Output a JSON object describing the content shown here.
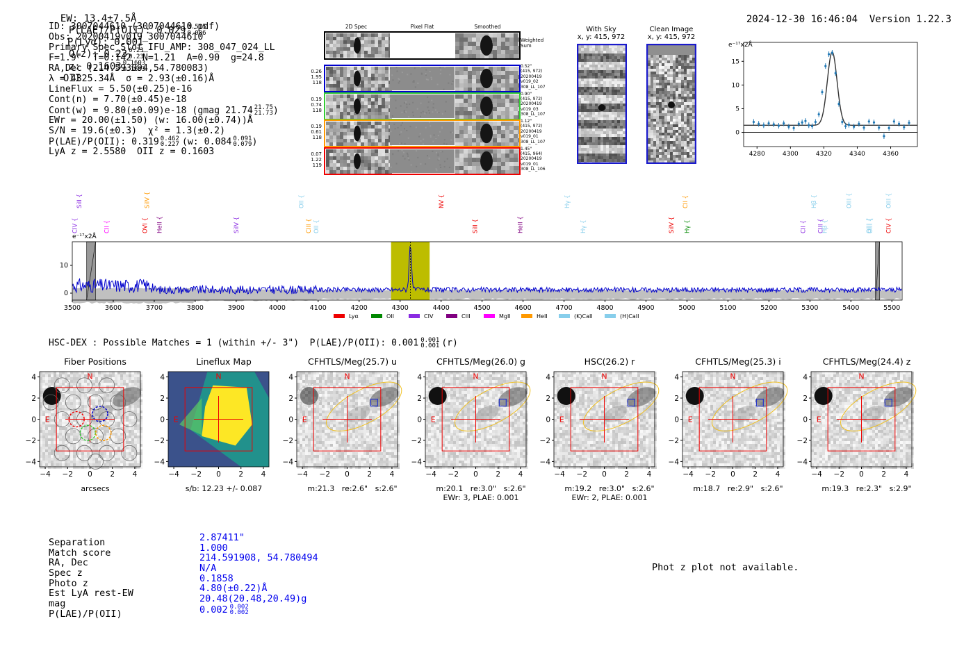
{
  "header": {
    "ew": "EW: 13.4±7.5Å",
    "plae_label": "P(LAE)/P(OII): 0.029",
    "plae_hi": "0.515",
    "plae_lo": "0.006",
    "plya": "P(Lyα): 0.001",
    "qz_label": "Q(z): 0.23",
    "qz_hi": "0.23",
    "qz_lo": "0.23",
    "z_label": "z: 0.1603",
    "z_hi": "0.1603",
    "z_lo": "0.1603",
    "z_line": "OII",
    "datetime": "2024-12-30 16:46:04",
    "version": "Version 1.22.3"
  },
  "info": {
    "id": "ID: 3007044610 (3007044610.pdf)",
    "obs": "Obs: 20200419v019_3007044610",
    "primary": "Primary Spec_Slot_IFU_AMP: 308_047_024_LL",
    "params": "F=1.9\"  T=0.142  N=1.21  A=0.90  g=24.8",
    "radec": "RA,Dec (214.593094,54.780083)",
    "lambda": "λ = 4325.34Å  σ = 2.93(±0.16)Å",
    "lineflux": "LineFlux = 5.50(±0.25)e-16",
    "contn": "Cont(n) = 7.70(±0.45)e-18",
    "contw": "Cont(w) = 9.80(±0.09)e-18 (gmag 21.74",
    "contw_hi": "21.75",
    "contw_lo": "21.73",
    "contw_close": ")",
    "ewr": "EWr = 20.00(±1.50) (w: 16.00(±0.74))Å",
    "sn": "S/N = 19.6(±0.3)  χ² = 1.3(±0.2)",
    "plae": "P(LAE)/P(OII): 0.319",
    "plae_hi": "0.462",
    "plae_lo": "0.227",
    "plae_w": "(w: 0.084",
    "plae_w_hi": "0.091",
    "plae_w_lo": "0.079",
    "plae_w_close": ")",
    "lya": "LyA z = 2.5580  OII z = 0.1603"
  },
  "cutouts2d": {
    "col_2d": "2D Spec",
    "col_flat": "Pixel Flat",
    "col_smooth": "Smoothed",
    "weighted": "Weighted\nSum",
    "rows": [
      {
        "left": "0.26\n1.95\n118",
        "right": "0.52\"\n(415, 972)\n20200419\nv019_02\n308_LL_107",
        "color": "#0000cc"
      },
      {
        "left": "0.19\n0.74\n118",
        "right": "0.90\"\n(415, 972)\n20200419\nv019_03\n308_LL_107",
        "color": "#33cc33"
      },
      {
        "left": "0.19\n0.61\n118",
        "right": "1.12\"\n(415, 972)\n20200419\nv019_01\n308_LL_107",
        "color": "#ff9900"
      },
      {
        "left": "0.07\n1.22\n119",
        "right": "1.45\"\n(415, 964)\n20200419\nv019_01\n308_LL_106",
        "color": "#ee0000"
      }
    ]
  },
  "sky": {
    "with_sky": "With Sky",
    "clean": "Clean Image",
    "coords1": "x, y: 415, 972",
    "coords2": "x, y: 415, 972"
  },
  "zoom_plot": {
    "unit": "e⁻¹⁷x2Å",
    "chart_data": {
      "type": "line",
      "xlim": [
        4272,
        4376
      ],
      "ylim": [
        -3,
        19
      ],
      "xticks": [
        "4280",
        "4300",
        "4320",
        "4340",
        "4360"
      ],
      "yticks": [
        "0",
        "5",
        "10",
        "15"
      ],
      "points_x": [
        4278,
        4281,
        4284,
        4287,
        4290,
        4293,
        4296,
        4299,
        4302,
        4305,
        4307,
        4309,
        4311,
        4313,
        4315,
        4317,
        4319,
        4321,
        4323,
        4325,
        4327,
        4329,
        4331,
        4333,
        4335,
        4338,
        4341,
        4344,
        4347,
        4350,
        4353,
        4356,
        4359,
        4362,
        4365,
        4368,
        4371
      ],
      "points_y": [
        2.2,
        1.8,
        1.5,
        1.9,
        1.7,
        1.4,
        1.9,
        1.2,
        0.9,
        1.8,
        2.1,
        2.4,
        1.5,
        1.3,
        2.2,
        3.8,
        8.5,
        14.0,
        16.5,
        16.8,
        12.5,
        6.0,
        2.2,
        1.3,
        1.6,
        1.2,
        1.8,
        1.0,
        2.3,
        2.1,
        1.0,
        -0.8,
        0.9,
        2.3,
        1.8,
        1.1,
        2.0
      ]
    }
  },
  "main_spec": {
    "unit": "e⁻¹⁷x2Å",
    "chart_data": {
      "type": "line",
      "xlim": [
        3500,
        5525
      ],
      "ylim": [
        -2.5,
        18.5
      ],
      "xticks": [
        "3500",
        "3600",
        "3700",
        "3800",
        "3900",
        "4000",
        "4100",
        "4200",
        "4300",
        "4400",
        "4500",
        "4600",
        "4700",
        "4800",
        "4900",
        "5000",
        "5100",
        "5200",
        "5300",
        "5400",
        "5500"
      ],
      "yticks": [
        "0",
        "10"
      ],
      "highlight_center": 4325,
      "highlight_range": [
        4278,
        4372
      ],
      "line_labels": [
        {
          "name": "CIV",
          "x": 3511,
          "color": "#8a2be2"
        },
        {
          "name": "SiII",
          "x": 3522,
          "color": "#8a2be2"
        },
        {
          "name": "CII",
          "x": 3589,
          "color": "#ff00ff"
        },
        {
          "name": "OVI",
          "x": 3682,
          "color": "#ee0000"
        },
        {
          "name": "SiIV",
          "x": 3687,
          "color": "#ff9900"
        },
        {
          "name": "HeII",
          "x": 3718,
          "color": "#800080"
        },
        {
          "name": "SiIV",
          "x": 3905,
          "color": "#8a2be2"
        },
        {
          "name": "OII",
          "x": 4064,
          "color": "#87ceeb"
        },
        {
          "name": "CIII",
          "x": 4082,
          "color": "#ff9900"
        },
        {
          "name": "OII",
          "x": 4100,
          "color": "#87ceeb"
        },
        {
          "name": "NV",
          "x": 4406,
          "color": "#ee0000"
        },
        {
          "name": "SiII",
          "x": 4488,
          "color": "#ee0000"
        },
        {
          "name": "HeII",
          "x": 4598,
          "color": "#800080"
        },
        {
          "name": "Hγ",
          "x": 4713,
          "color": "#87ceeb"
        },
        {
          "name": "Hγ",
          "x": 4752,
          "color": "#87ceeb"
        },
        {
          "name": "SiIV",
          "x": 4967,
          "color": "#ee0000"
        },
        {
          "name": "CII",
          "x": 5001,
          "color": "#ff9900"
        },
        {
          "name": "Hγ",
          "x": 5005,
          "color": "#008800"
        },
        {
          "name": "CII",
          "x": 5288,
          "color": "#8a2be2"
        },
        {
          "name": "Hβ",
          "x": 5315,
          "color": "#87ceeb"
        },
        {
          "name": "CIII",
          "x": 5331,
          "color": "#8a2be2"
        },
        {
          "name": "Hβ",
          "x": 5341,
          "color": "#87ceeb"
        },
        {
          "name": "OIII",
          "x": 5400,
          "color": "#87ceeb"
        },
        {
          "name": "OIII",
          "x": 5449,
          "color": "#87ceeb"
        },
        {
          "name": "OIII",
          "x": 5452,
          "color": "#87ceeb"
        },
        {
          "name": "OIII",
          "x": 5497,
          "color": "#87ceeb"
        },
        {
          "name": "CIV",
          "x": 5497,
          "color": "#ee0000"
        }
      ],
      "legend": [
        {
          "name": "Lyα",
          "color": "#ee0000"
        },
        {
          "name": "OII",
          "color": "#008800"
        },
        {
          "name": "CIV",
          "color": "#8a2be2"
        },
        {
          "name": "CIII",
          "color": "#800080"
        },
        {
          "name": "MgII",
          "color": "#ff00ff"
        },
        {
          "name": "HeII",
          "color": "#ff9900"
        },
        {
          "name": "(K)CaII",
          "color": "#87ceeb"
        },
        {
          "name": "(H)CaII",
          "color": "#87ceeb"
        }
      ]
    }
  },
  "hsc": {
    "title": "HSC-DEX : Possible Matches = 1 (within +/- 3\")  P(LAE)/P(OII): 0.001",
    "hi": "0.001",
    "lo": "0.001",
    "band": "(r)",
    "panels": [
      {
        "title": "Fiber Positions",
        "cap1": "arcsecs",
        "cap2": ""
      },
      {
        "title": "Lineflux Map",
        "cap1": "s/b: 12.23 +/- 0.087",
        "cap2": ""
      },
      {
        "title": "CFHTLS/Meg(25.7) u",
        "cap1": "m:21.3   re:2.6\"   s:2.6\"",
        "cap2": ""
      },
      {
        "title": "CFHTLS/Meg(26.0) g",
        "cap1": "m:20.1   re:3.0\"   s:2.6\"",
        "cap2": "EWr: 3, PLAE: 0.001"
      },
      {
        "title": "HSC(26.2) r",
        "cap1": "m:19.2   re:3.0\"   s:2.6\"",
        "cap2": "EWr: 2, PLAE: 0.001"
      },
      {
        "title": "CFHTLS/Meg(25.3) i",
        "cap1": "m:18.7   re:2.9\"   s:2.6\"",
        "cap2": ""
      },
      {
        "title": "CFHTLS/Meg(24.4) z",
        "cap1": "m:19.3   re:2.3\"   s:2.9\"",
        "cap2": ""
      }
    ],
    "axis_ticks": [
      "−4",
      "−2",
      "0",
      "2",
      "4"
    ],
    "north": "N",
    "east": "E"
  },
  "bottom": {
    "labels": [
      "Separation",
      "Match score",
      "RA, Dec",
      "Spec z",
      "Photo z",
      "Est LyA rest-EW",
      "mag",
      "P(LAE)/P(OII)"
    ],
    "values": [
      "2.87411\"",
      "1.000",
      "214.591908, 54.780494",
      "N/A",
      "0.1858",
      "4.80(±0.22)Å",
      "20.48(20.48,20.49)g",
      "0.002"
    ],
    "plae_hi": "0.002",
    "plae_lo": "0.002",
    "photz_msg": "Phot z plot not available."
  },
  "colors": {
    "accent_blue": "#0000ee",
    "spectrum": "#0000cc",
    "highlight": "#bdbd00",
    "noise": "#c0c0c0"
  }
}
